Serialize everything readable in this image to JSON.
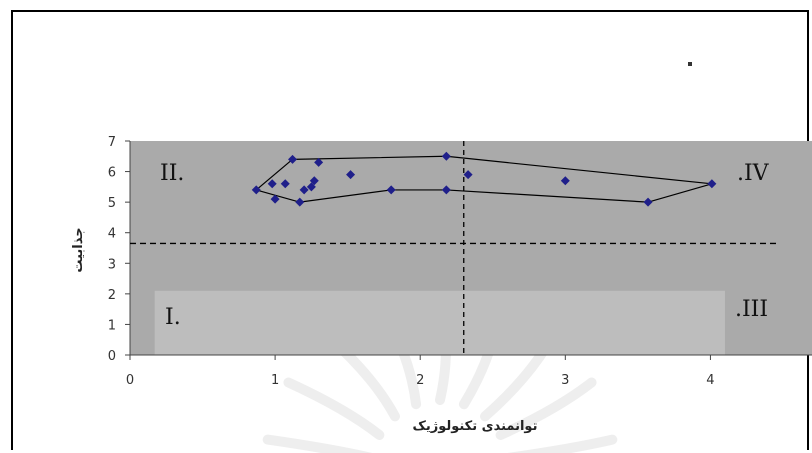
{
  "chart_data": {
    "type": "scatter",
    "xlabel": "توانمندی تکنولوژیک",
    "ylabel": "جذابیت",
    "xlim": [
      0,
      4.7
    ],
    "ylim": [
      0,
      7
    ],
    "x_ticks": [
      "0",
      "1",
      "2",
      "3",
      "4"
    ],
    "y_ticks": [
      "0",
      "1",
      "2",
      "3",
      "4",
      "5",
      "6",
      "7"
    ],
    "grid": false,
    "threshold_x": 2.3,
    "threshold_y": 3.65,
    "quadrant_labels": {
      "q1": "I.",
      "q2": "II.",
      "q3": ".III",
      "q4": ".IV"
    },
    "points": [
      {
        "x": 0.87,
        "y": 5.4
      },
      {
        "x": 0.98,
        "y": 5.6
      },
      {
        "x": 1.0,
        "y": 5.1
      },
      {
        "x": 1.07,
        "y": 5.6
      },
      {
        "x": 1.12,
        "y": 6.4
      },
      {
        "x": 1.17,
        "y": 5.0
      },
      {
        "x": 1.2,
        "y": 5.4
      },
      {
        "x": 1.25,
        "y": 5.5
      },
      {
        "x": 1.27,
        "y": 5.7
      },
      {
        "x": 1.3,
        "y": 6.3
      },
      {
        "x": 1.52,
        "y": 5.9
      },
      {
        "x": 1.8,
        "y": 5.4
      },
      {
        "x": 2.18,
        "y": 6.5
      },
      {
        "x": 2.18,
        "y": 5.4
      },
      {
        "x": 2.33,
        "y": 5.9
      },
      {
        "x": 3.0,
        "y": 5.7
      },
      {
        "x": 3.57,
        "y": 5.0
      },
      {
        "x": 4.01,
        "y": 5.6
      }
    ],
    "envelope": [
      {
        "x": 0.87,
        "y": 5.4
      },
      {
        "x": 1.12,
        "y": 6.4
      },
      {
        "x": 2.18,
        "y": 6.5
      },
      {
        "x": 4.01,
        "y": 5.6
      },
      {
        "x": 3.57,
        "y": 5.0
      },
      {
        "x": 2.18,
        "y": 5.4
      },
      {
        "x": 1.8,
        "y": 5.4
      },
      {
        "x": 1.17,
        "y": 5.0
      },
      {
        "x": 0.87,
        "y": 5.4
      }
    ],
    "colors": {
      "plot_area": "#aaaaaa",
      "lower_band": "#bdbdbd",
      "marker": "#1f1f8a",
      "envelope_line": "#000000",
      "threshold_line": "#000000"
    }
  }
}
